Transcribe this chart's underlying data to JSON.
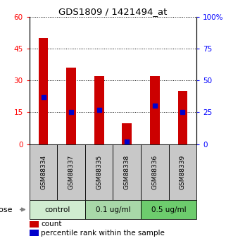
{
  "title": "GDS1809 / 1421494_at",
  "samples": [
    "GSM88334",
    "GSM88337",
    "GSM88335",
    "GSM88338",
    "GSM88336",
    "GSM88339"
  ],
  "counts": [
    50,
    36,
    32,
    10,
    32,
    25
  ],
  "percentiles": [
    37,
    25,
    27,
    2,
    30,
    25
  ],
  "left_ylim": [
    0,
    60
  ],
  "right_ylim": [
    0,
    100
  ],
  "left_yticks": [
    0,
    15,
    30,
    45,
    60
  ],
  "right_yticks": [
    0,
    25,
    50,
    75,
    100
  ],
  "right_yticklabels": [
    "0",
    "25",
    "50",
    "75",
    "100%"
  ],
  "bar_color": "#cc0000",
  "marker_color": "#0000cc",
  "bar_width": 0.35,
  "groups": [
    {
      "label": "control",
      "indices": [
        0,
        1
      ],
      "color": "#d0ecd0"
    },
    {
      "label": "0.1 ug/ml",
      "indices": [
        2,
        3
      ],
      "color": "#a8d8a8"
    },
    {
      "label": "0.5 ug/ml",
      "indices": [
        4,
        5
      ],
      "color": "#6dcc6d"
    }
  ],
  "dose_label": "dose",
  "legend_count": "count",
  "legend_percentile": "percentile rank within the sample",
  "bg_color": "#ffffff",
  "sample_bg_color": "#c8c8c8"
}
